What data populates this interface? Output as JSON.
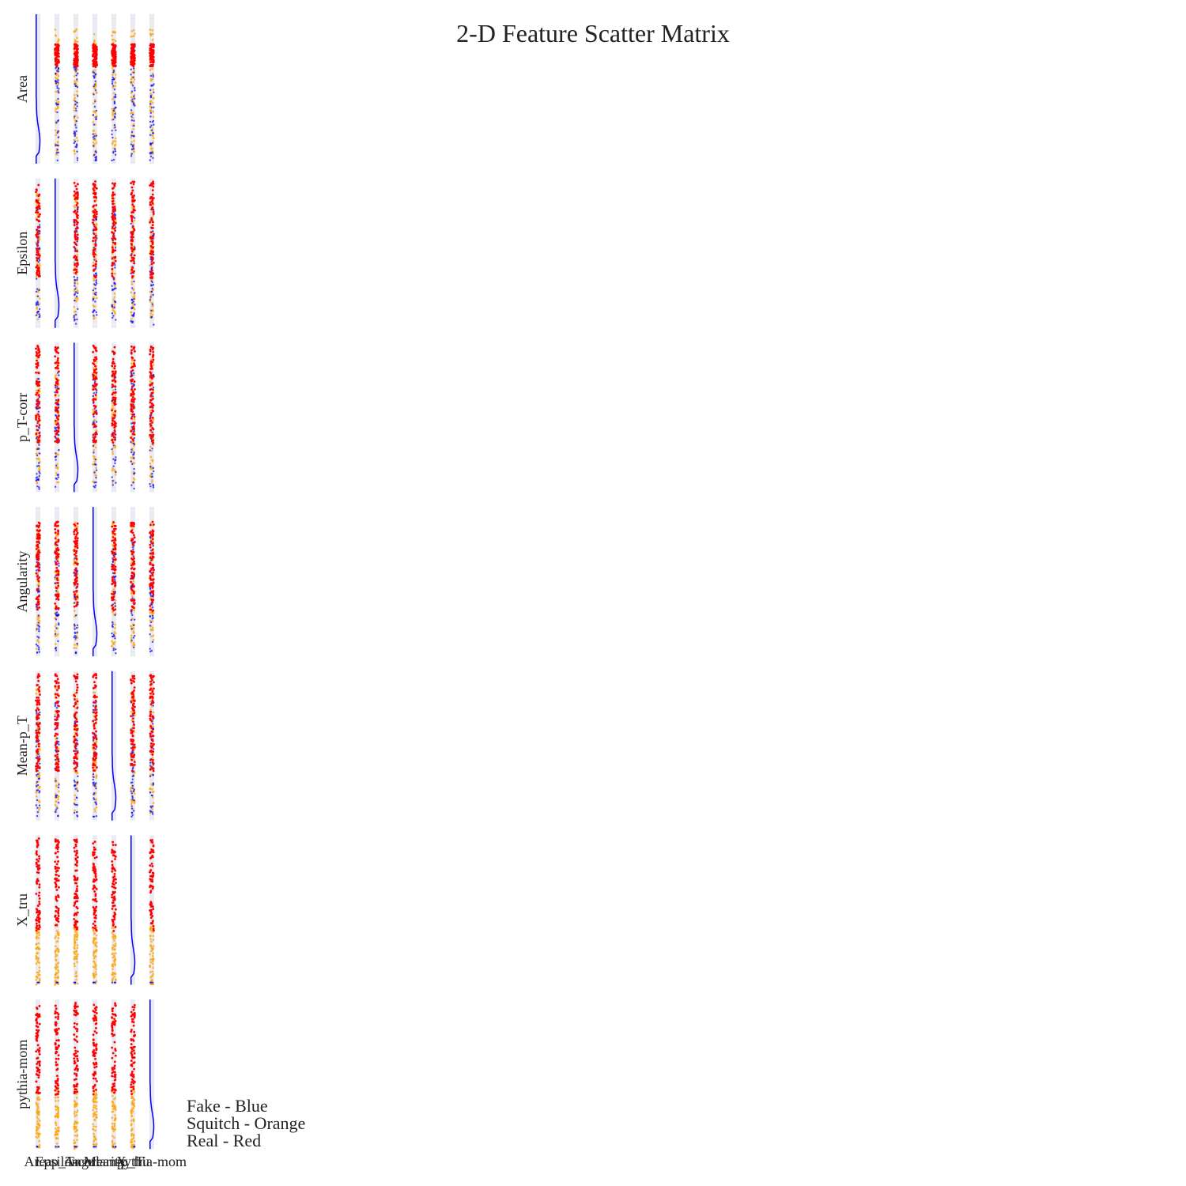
{
  "chart_data": {
    "type": "scatter",
    "title": "2-D Feature Scatter Matrix",
    "variables": [
      "Area",
      "Epsilon",
      "p_T-corr",
      "Angularity",
      "Mean-p_T",
      "X_tru",
      "pythia-mom"
    ],
    "colors": {
      "Fake": "#0000ff",
      "Squitch": "#ffa500",
      "Real": "#ff0000"
    },
    "background": "#eaeaf2",
    "diagonal": "histogram",
    "grid": true,
    "legend_position": "bottom-left"
  },
  "legend": [
    {
      "text": "Fake - Blue"
    },
    {
      "text": "Squitch - Orange"
    },
    {
      "text": "Real - Red"
    }
  ]
}
